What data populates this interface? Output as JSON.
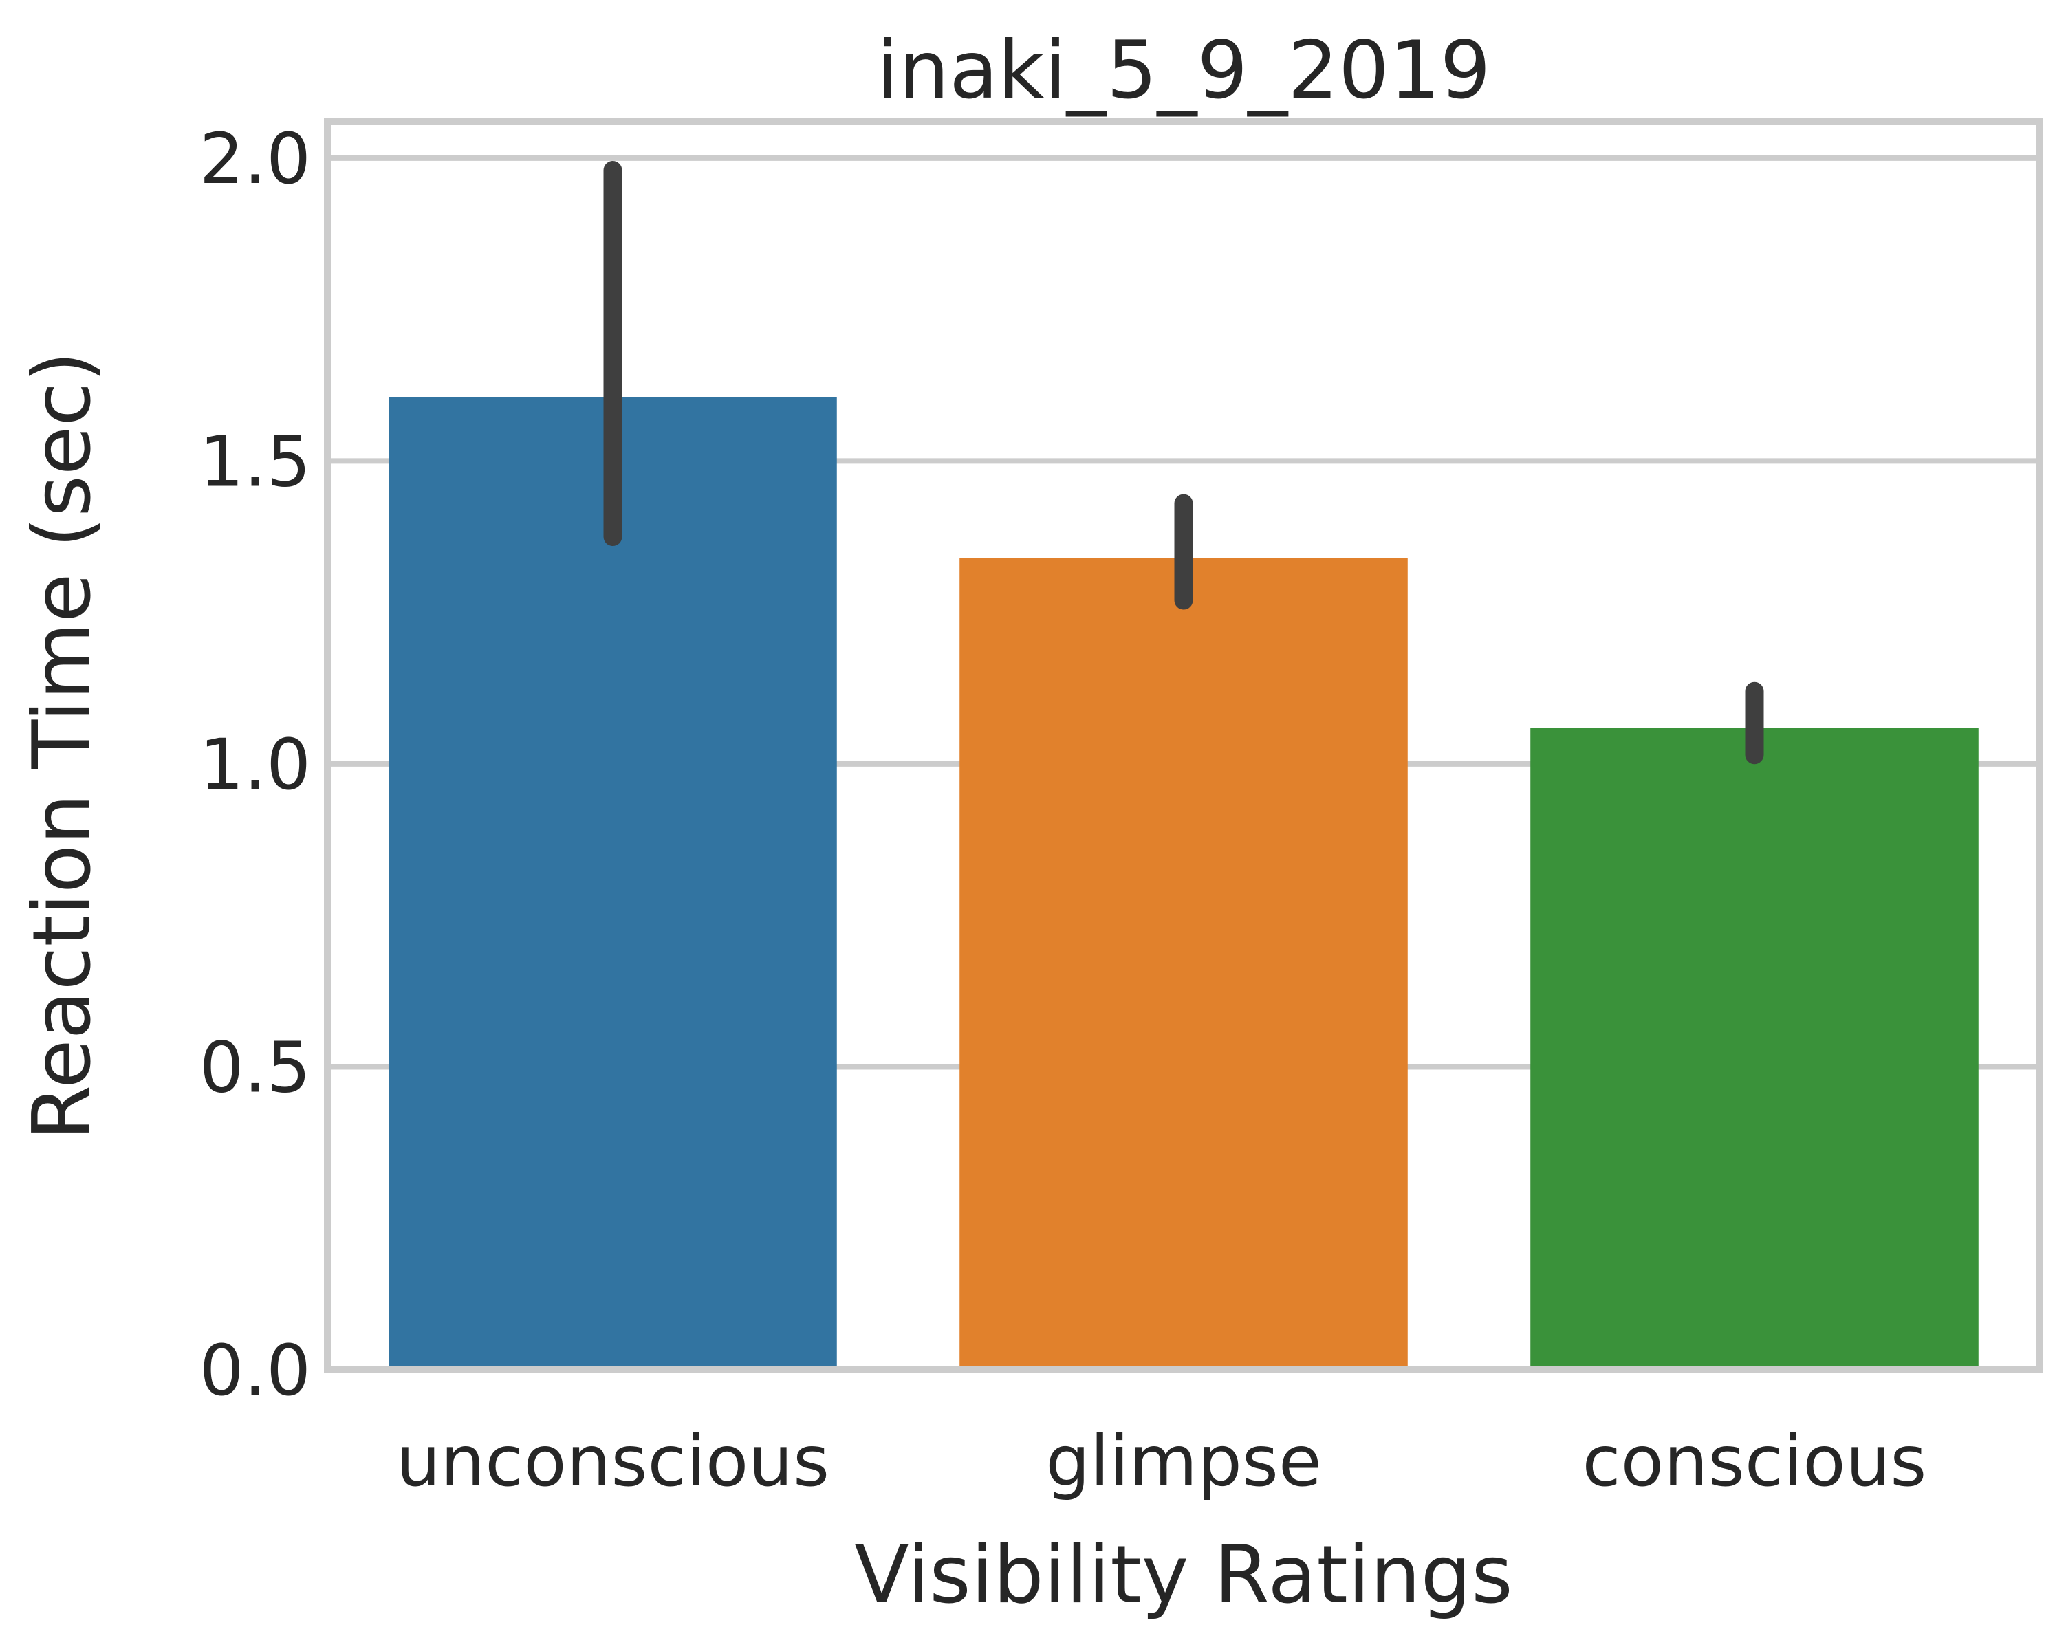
{
  "chart_data": {
    "type": "bar",
    "title": "inaki_5_9_2019",
    "xlabel": "Visibility Ratings",
    "ylabel": "Reaction Time (sec)",
    "categories": [
      "unconscious",
      "glimpse",
      "conscious"
    ],
    "values": [
      1.605,
      1.34,
      1.06
    ],
    "error_low": [
      1.375,
      1.27,
      1.015
    ],
    "error_high": [
      1.98,
      1.43,
      1.12
    ],
    "ylim": [
      0,
      2.06
    ],
    "yticks": [
      0.0,
      0.5,
      1.0,
      1.5,
      2.0
    ],
    "ytick_labels": [
      "0.0",
      "0.5",
      "1.0",
      "1.5",
      "2.0"
    ],
    "colors": [
      "#3274a1",
      "#e1812c",
      "#3a923a"
    ],
    "errorbar_color": "#3f3f3f",
    "grid": true,
    "grid_axis": "y",
    "legend": "none"
  }
}
